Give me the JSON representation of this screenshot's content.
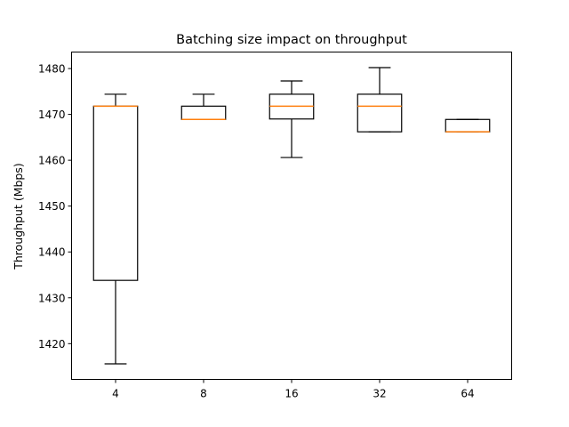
{
  "chart_data": {
    "type": "box",
    "title": "Batching size impact on throughput",
    "xlabel": "",
    "ylabel": "Throughput (Mbps)",
    "ylim": [
      1412.2,
      1483.6
    ],
    "yticks": [
      1420,
      1430,
      1440,
      1450,
      1460,
      1470,
      1480
    ],
    "categories": [
      "4",
      "8",
      "16",
      "32",
      "64"
    ],
    "boxes": [
      {
        "category": "4",
        "whislo": 1415.6,
        "q1": 1433.8,
        "med": 1471.8,
        "q3": 1471.8,
        "whishi": 1474.4
      },
      {
        "category": "8",
        "whislo": 1468.9,
        "q1": 1468.9,
        "med": 1468.9,
        "q3": 1471.8,
        "whishi": 1474.4
      },
      {
        "category": "16",
        "whislo": 1460.6,
        "q1": 1469.0,
        "med": 1471.8,
        "q3": 1474.4,
        "whishi": 1477.3
      },
      {
        "category": "32",
        "whislo": 1466.2,
        "q1": 1466.2,
        "med": 1471.8,
        "q3": 1474.4,
        "whishi": 1480.2
      },
      {
        "category": "64",
        "whislo": 1466.2,
        "q1": 1466.2,
        "med": 1466.2,
        "q3": 1468.9,
        "whishi": 1468.9
      }
    ],
    "grid": false,
    "colors": {
      "box": "#000000",
      "median": "#ff7f0e"
    }
  }
}
